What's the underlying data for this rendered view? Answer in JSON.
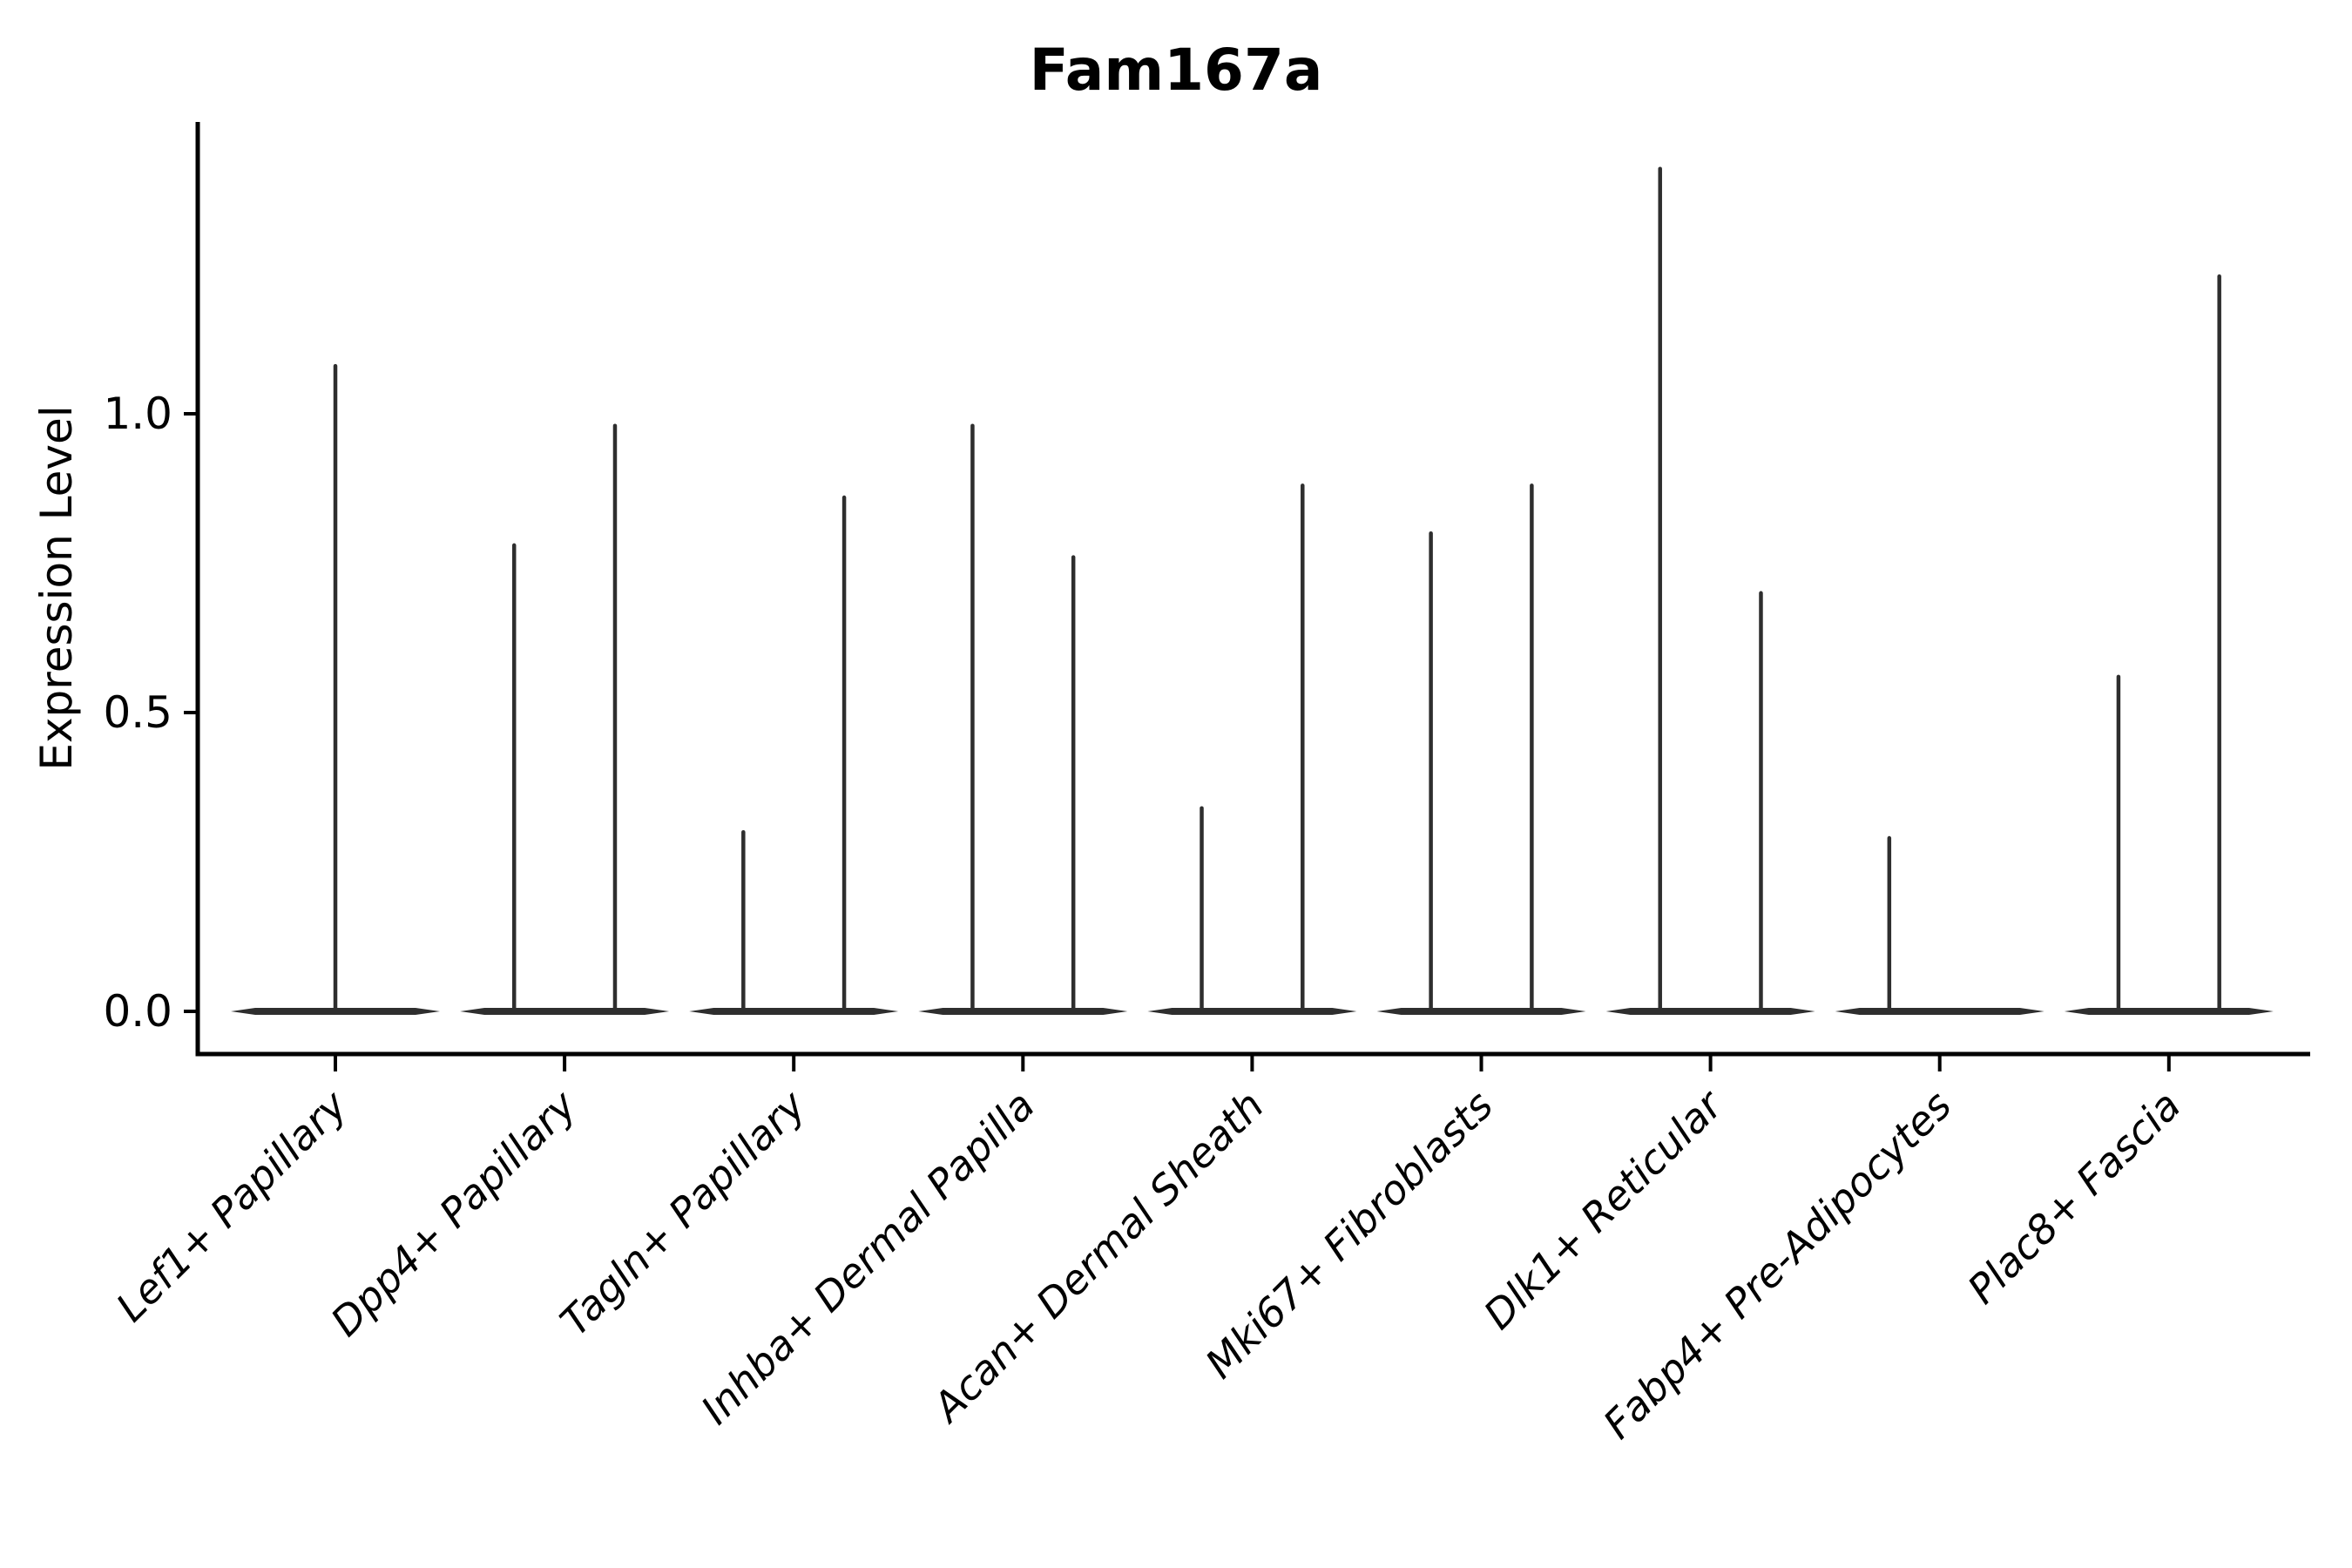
{
  "colors": {
    "violin": "#2e2e2e",
    "axis": "#000000",
    "text": "#000000",
    "background": "#ffffff"
  },
  "chart_data": {
    "type": "violin",
    "title": "Fam167a",
    "xlabel": "",
    "ylabel": "Expression Level",
    "ytick_labels": [
      "0.0",
      "0.5",
      "1.0"
    ],
    "ytick_values": [
      0.0,
      0.5,
      1.0
    ],
    "ylim": [
      -0.07,
      1.47
    ],
    "grid": false,
    "legend": "none",
    "x_tick_rotation_deg": 45,
    "categories": [
      "Lef1+ Papillary",
      "Dpp4+ Papillary",
      "Tagln+ Papillary",
      "Inhba+ Dermal Papilla",
      "Acan+ Dermal Sheath",
      "Mki67+ Fibroblasts",
      "Dlk1+ Reticular",
      "Fabp4+ Pre-Adipocytes",
      "Plac8+ Fascia"
    ],
    "violin_base_halfwidth_units": 0.455,
    "description": "Each cell type shows a flat violin base at expression 0 with thin spikes reaching the maximum expression values listed per spike.",
    "violins": [
      {
        "category": "Lef1+ Papillary",
        "spikes": [
          {
            "offset_units": 0.0,
            "max": 1.08
          }
        ]
      },
      {
        "category": "Dpp4+ Papillary",
        "spikes": [
          {
            "offset_units": -0.22,
            "max": 0.78
          },
          {
            "offset_units": 0.22,
            "max": 0.98
          }
        ]
      },
      {
        "category": "Tagln+ Papillary",
        "spikes": [
          {
            "offset_units": -0.22,
            "max": 0.3
          },
          {
            "offset_units": 0.22,
            "max": 0.86
          }
        ]
      },
      {
        "category": "Inhba+ Dermal Papilla",
        "spikes": [
          {
            "offset_units": -0.22,
            "max": 0.98
          },
          {
            "offset_units": 0.22,
            "max": 0.76
          }
        ]
      },
      {
        "category": "Acan+ Dermal Sheath",
        "spikes": [
          {
            "offset_units": -0.22,
            "max": 0.34
          },
          {
            "offset_units": 0.22,
            "max": 0.88
          }
        ]
      },
      {
        "category": "Mki67+ Fibroblasts",
        "spikes": [
          {
            "offset_units": -0.22,
            "max": 0.8
          },
          {
            "offset_units": 0.22,
            "max": 0.88
          }
        ]
      },
      {
        "category": "Dlk1+ Reticular",
        "spikes": [
          {
            "offset_units": -0.22,
            "max": 1.41
          },
          {
            "offset_units": 0.22,
            "max": 0.7
          }
        ]
      },
      {
        "category": "Fabp4+ Pre-Adipocytes",
        "spikes": [
          {
            "offset_units": -0.22,
            "max": 0.29
          }
        ]
      },
      {
        "category": "Plac8+ Fascia",
        "spikes": [
          {
            "offset_units": -0.22,
            "max": 0.56
          },
          {
            "offset_units": 0.22,
            "max": 1.23
          }
        ]
      }
    ]
  }
}
